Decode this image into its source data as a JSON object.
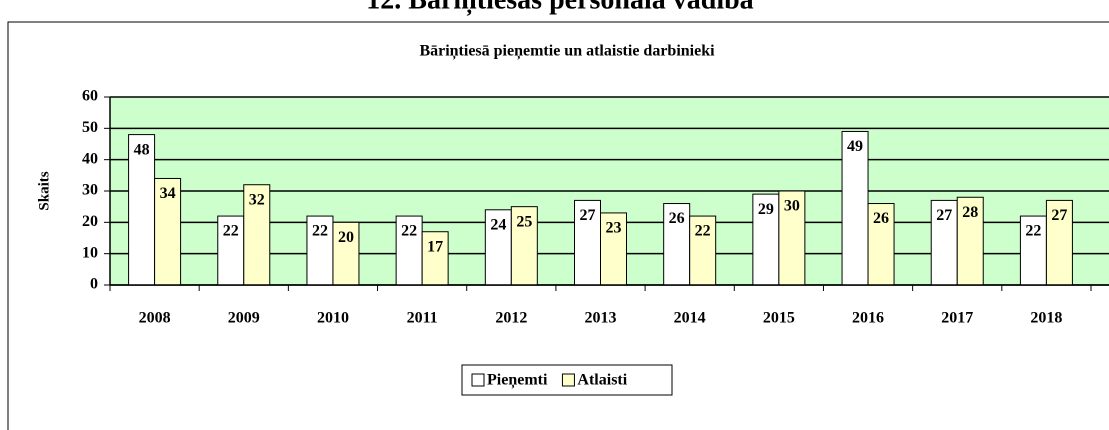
{
  "heading": "12. Bāriņtiesas personāla vadība",
  "chart_data": {
    "type": "bar",
    "title": "Bāriņtiesā pieņemtie un atlaistie darbinieki",
    "y_label": "Skaits",
    "categories": [
      "2008",
      "2009",
      "2010",
      "2011",
      "2012",
      "2013",
      "2014",
      "2015",
      "2016",
      "2017",
      "2018"
    ],
    "series": [
      {
        "name": "Pieņemti",
        "color": "#ffffff",
        "values": [
          48,
          22,
          22,
          22,
          24,
          27,
          26,
          29,
          49,
          27,
          22
        ]
      },
      {
        "name": "Atlaisti",
        "color": "#ffffcc",
        "values": [
          34,
          32,
          20,
          17,
          25,
          23,
          22,
          30,
          26,
          28,
          27
        ]
      }
    ],
    "ylim": [
      0,
      60
    ],
    "yticks": [
      0,
      10,
      20,
      30,
      40,
      50,
      60
    ],
    "grid": true,
    "plot_background": "#ccffcc",
    "legend": "bottom"
  }
}
